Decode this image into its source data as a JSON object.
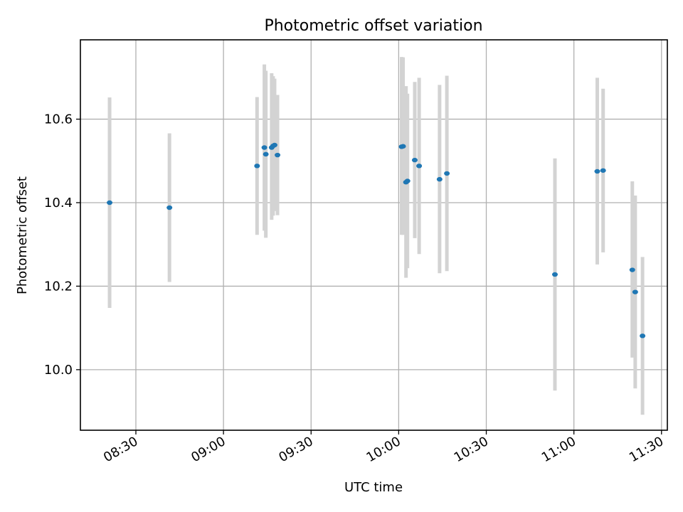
{
  "chart_data": {
    "type": "scatter",
    "title": "Photometric offset variation",
    "xlabel": "UTC time",
    "ylabel": "Photometric offset",
    "grid": true,
    "x_ticks": [
      "08:30",
      "09:00",
      "09:30",
      "10:00",
      "10:30",
      "11:00",
      "11:30"
    ],
    "y_ticks": [
      "10.0",
      "10.2",
      "10.4",
      "10.6"
    ],
    "xlim": [
      "08:11",
      "11:32"
    ],
    "ylim": [
      9.855,
      10.79
    ],
    "colors": {
      "point": "#1f77b4",
      "errorbar": "#d3d3d3"
    },
    "points": [
      {
        "x": "08:21:00",
        "y": 10.4,
        "lo": 10.148,
        "hi": 10.652
      },
      {
        "x": "08:41:30",
        "y": 10.388,
        "lo": 10.21,
        "hi": 10.566
      },
      {
        "x": "09:11:30",
        "y": 10.488,
        "lo": 10.323,
        "hi": 10.653
      },
      {
        "x": "09:14:00",
        "y": 10.532,
        "lo": 10.333,
        "hi": 10.731
      },
      {
        "x": "09:14:30",
        "y": 10.516,
        "lo": 10.316,
        "hi": 10.716
      },
      {
        "x": "09:16:30",
        "y": 10.532,
        "lo": 10.359,
        "hi": 10.71
      },
      {
        "x": "09:17:00",
        "y": 10.536,
        "lo": 10.369,
        "hi": 10.703
      },
      {
        "x": "09:17:30",
        "y": 10.538,
        "lo": 10.38,
        "hi": 10.697
      },
      {
        "x": "09:18:30",
        "y": 10.514,
        "lo": 10.37,
        "hi": 10.658
      },
      {
        "x": "10:01:00",
        "y": 10.534,
        "lo": 10.323,
        "hi": 10.749
      },
      {
        "x": "10:01:30",
        "y": 10.535,
        "lo": 10.323,
        "hi": 10.748
      },
      {
        "x": "10:02:30",
        "y": 10.449,
        "lo": 10.22,
        "hi": 10.679
      },
      {
        "x": "10:03:00",
        "y": 10.452,
        "lo": 10.243,
        "hi": 10.661
      },
      {
        "x": "10:05:30",
        "y": 10.502,
        "lo": 10.315,
        "hi": 10.689
      },
      {
        "x": "10:07:00",
        "y": 10.488,
        "lo": 10.277,
        "hi": 10.699
      },
      {
        "x": "10:14:00",
        "y": 10.456,
        "lo": 10.231,
        "hi": 10.682
      },
      {
        "x": "10:16:30",
        "y": 10.47,
        "lo": 10.236,
        "hi": 10.704
      },
      {
        "x": "10:53:30",
        "y": 10.228,
        "lo": 9.95,
        "hi": 10.506
      },
      {
        "x": "11:08:00",
        "y": 10.475,
        "lo": 10.252,
        "hi": 10.699
      },
      {
        "x": "11:10:00",
        "y": 10.477,
        "lo": 10.281,
        "hi": 10.673
      },
      {
        "x": "11:20:00",
        "y": 10.239,
        "lo": 10.029,
        "hi": 10.451
      },
      {
        "x": "11:21:00",
        "y": 10.186,
        "lo": 9.955,
        "hi": 10.417
      },
      {
        "x": "11:23:30",
        "y": 10.081,
        "lo": 9.892,
        "hi": 10.27
      }
    ]
  }
}
